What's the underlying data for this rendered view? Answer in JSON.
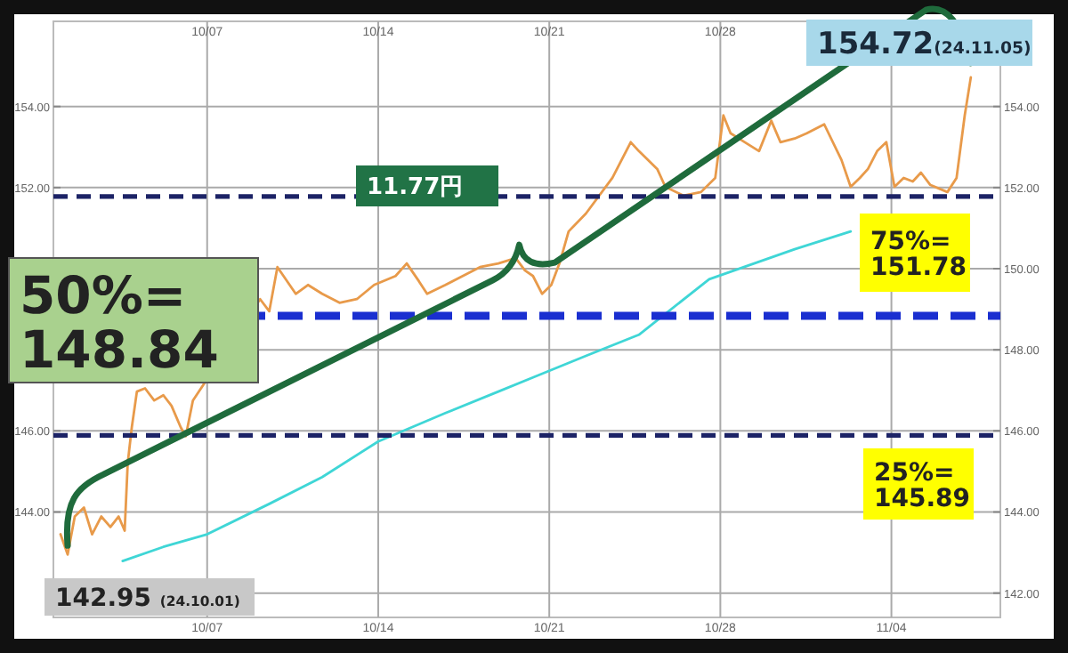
{
  "chart_data": {
    "type": "line",
    "x": [
      "--10-01T00:00",
      "--10-01T07:00",
      "--10-01T14:00",
      "--10-01T23:00",
      "--10-02T07:00",
      "--10-02T16:00",
      "--10-03T01:00",
      "--10-03T09:00",
      "--10-03T15:00",
      "--10-03T18:00",
      "--10-03T22:00",
      "--10-04T03:00",
      "--10-04T11:00",
      "--10-04T20:00",
      "--10-05T05:00",
      "--10-05T13:00",
      "--10-05T22:00",
      "--10-06T03:00",
      "--10-06T10:00",
      "--10-09T04:00",
      "--10-09T13:00",
      "--10-09T21:00",
      "--10-10T15:00",
      "--10-11T03:00",
      "--10-11T17:00",
      "--10-12T10:00",
      "--10-13T03:00",
      "--10-13T20:00",
      "--10-14T17:00",
      "--10-15T04:00",
      "--10-15T16:00",
      "--10-16T00:00",
      "--10-16T18:00",
      "--10-17T11:00",
      "--10-18T04:00",
      "--10-18T22:00",
      "--10-19T15:00",
      "--10-20T00:00",
      "--10-20T08:00",
      "--10-20T17:00",
      "--10-21T02:00",
      "--10-21T10:00",
      "--10-21T19:00",
      "--10-22T12:00",
      "--10-23T14:00",
      "--10-24T08:00",
      "--10-24T16:00",
      "--10-25T10:00",
      "--10-25T18:00",
      "--10-26T12:00",
      "--10-27T05:00",
      "--10-27T19:00",
      "--10-28T03:00",
      "--10-28T10:00",
      "--10-29T00:00",
      "--10-29T14:00",
      "--10-30T02:00",
      "--10-30T11:00",
      "--10-31T01:00",
      "--10-31T13:00",
      "--11-01T06:00",
      "--11-01T23:00",
      "--11-02T08:00",
      "--11-02T17:00",
      "--11-03T01:00",
      "--11-03T10:00",
      "--11-03T19:00",
      "--11-04T03:00",
      "--11-04T12:00",
      "--11-04T21:00",
      "--11-05T05:00",
      "--11-05T14:00",
      "--11-06T07:00",
      "--11-06T16:00",
      "--11-07T00:00",
      "--11-07T06:00"
    ],
    "series": [
      {
        "color": "#e89a4a",
        "values": [
          143.45,
          142.95,
          143.89,
          144.11,
          143.45,
          143.89,
          143.63,
          143.89,
          143.54,
          145.21,
          146.09,
          146.97,
          147.05,
          146.75,
          146.88,
          146.62,
          146.09,
          145.87,
          146.75,
          149.25,
          148.95,
          150.04,
          149.38,
          149.6,
          149.38,
          149.16,
          149.25,
          149.6,
          149.82,
          150.13,
          149.69,
          149.38,
          149.6,
          149.82,
          150.04,
          150.13,
          150.26,
          149.96,
          149.82,
          149.38,
          149.6,
          150.13,
          150.92,
          151.36,
          152.24,
          153.12,
          152.9,
          152.46,
          152.02,
          151.8,
          151.89,
          152.24,
          153.78,
          153.34,
          153.12,
          152.9,
          153.65,
          153.12,
          153.21,
          153.34,
          153.56,
          152.68,
          152.02,
          152.24,
          152.46,
          152.9,
          153.12,
          152.02,
          152.24,
          152.15,
          152.37,
          152.07,
          151.89,
          152.24,
          153.78,
          154.72
        ]
      },
      {
        "color": "#3fd6d6",
        "x": [
          "--10-03T13:00",
          "--10-05T05:00",
          "--10-07T00:00",
          "--10-09T13:00",
          "--10-11T17:00",
          "--10-14T00:00",
          "--10-16T18:00",
          "--10-18T22:00",
          "--10-20T08:00",
          "--10-22T12:00",
          "--10-24T16:00",
          "--10-27T13:00",
          "--10-31T01:00",
          "--11-02T08:00"
        ],
        "values": [
          142.79,
          143.14,
          143.45,
          144.2,
          144.86,
          145.74,
          146.44,
          146.97,
          147.32,
          147.85,
          148.37,
          149.74,
          150.48,
          150.92
        ]
      }
    ],
    "xlim": [
      "--09-30T17:00",
      "--11-08T11:00"
    ],
    "xticks": [
      {
        "value": "--10-07",
        "label": "10/07"
      },
      {
        "value": "--10-14",
        "label": "10/14"
      },
      {
        "value": "--10-21",
        "label": "10/21"
      },
      {
        "value": "--10-28",
        "label": "10/28"
      },
      {
        "value": "--11-04",
        "label": "11/04"
      }
    ],
    "x2lim": [
      "--09-30T17:00",
      "--11-08T11:00"
    ],
    "x2ticks": [
      {
        "value": "--10-07",
        "label": "10/07"
      },
      {
        "value": "--10-14",
        "label": "10/14"
      },
      {
        "value": "--10-21",
        "label": "10/21"
      },
      {
        "value": "--10-28",
        "label": "10/28"
      },
      {
        "value": "--11-04",
        "label": null
      }
    ],
    "ylim": [
      141.4,
      156.1
    ],
    "yticks": [
      {
        "value": 142,
        "label": null
      },
      {
        "value": 144,
        "label": "144.00"
      },
      {
        "value": 146,
        "label": "146.00"
      },
      {
        "value": 148,
        "label": null
      },
      {
        "value": 150,
        "label": null
      },
      {
        "value": 152,
        "label": "152.00"
      },
      {
        "value": 154,
        "label": "154.00"
      }
    ],
    "y2lim": [
      141.4,
      156.1
    ],
    "y2ticks": [
      {
        "value": 142,
        "label": "142.00"
      },
      {
        "value": 144,
        "label": "144.00"
      },
      {
        "value": 146,
        "label": "146.00"
      },
      {
        "value": 148,
        "label": "148.00"
      },
      {
        "value": 150,
        "label": "150.00"
      },
      {
        "value": 152,
        "label": "152.00"
      },
      {
        "value": 154,
        "label": "154.00"
      }
    ],
    "grid": true,
    "ref_lines": [
      {
        "axis": "y",
        "value": 148.84,
        "label": "50%=\n148.84",
        "color": "#1a2fd0",
        "line_style": "dashed"
      },
      {
        "axis": "y",
        "value": 151.78,
        "label": "75%=\n151.78",
        "color": "#1c2366",
        "line_style": "dashed"
      },
      {
        "axis": "y",
        "value": 145.89,
        "label": "25%=\n145.89",
        "color": "#1c2366",
        "line_style": "dashed"
      }
    ],
    "annotations": [
      "154.72(24.11.05)",
      "142.95 (24.10.01)",
      "11.77円"
    ]
  }
}
